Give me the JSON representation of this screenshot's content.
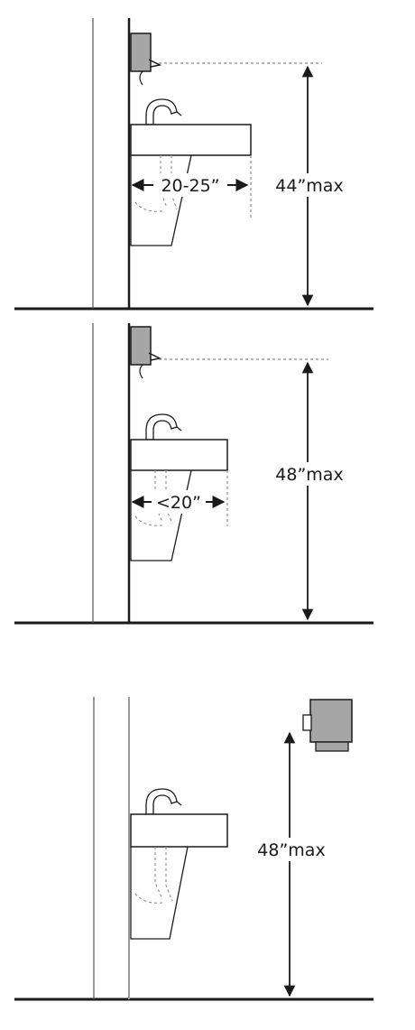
{
  "panels": [
    {
      "depth_label": "20-25”",
      "height_label": "44”max",
      "dispenser": "wall-mounted-dispenser"
    },
    {
      "depth_label": "<20”",
      "height_label": "48”max",
      "dispenser": "wall-mounted-dispenser"
    },
    {
      "depth_label": "",
      "height_label": "48”max",
      "dispenser": "free-standing-dispenser"
    }
  ],
  "colors": {
    "line": "#1a1a1a",
    "dashed": "#8c8c8c",
    "dispenser_fill": "#a6a6a6",
    "wall_light": "#9a9a9a"
  }
}
